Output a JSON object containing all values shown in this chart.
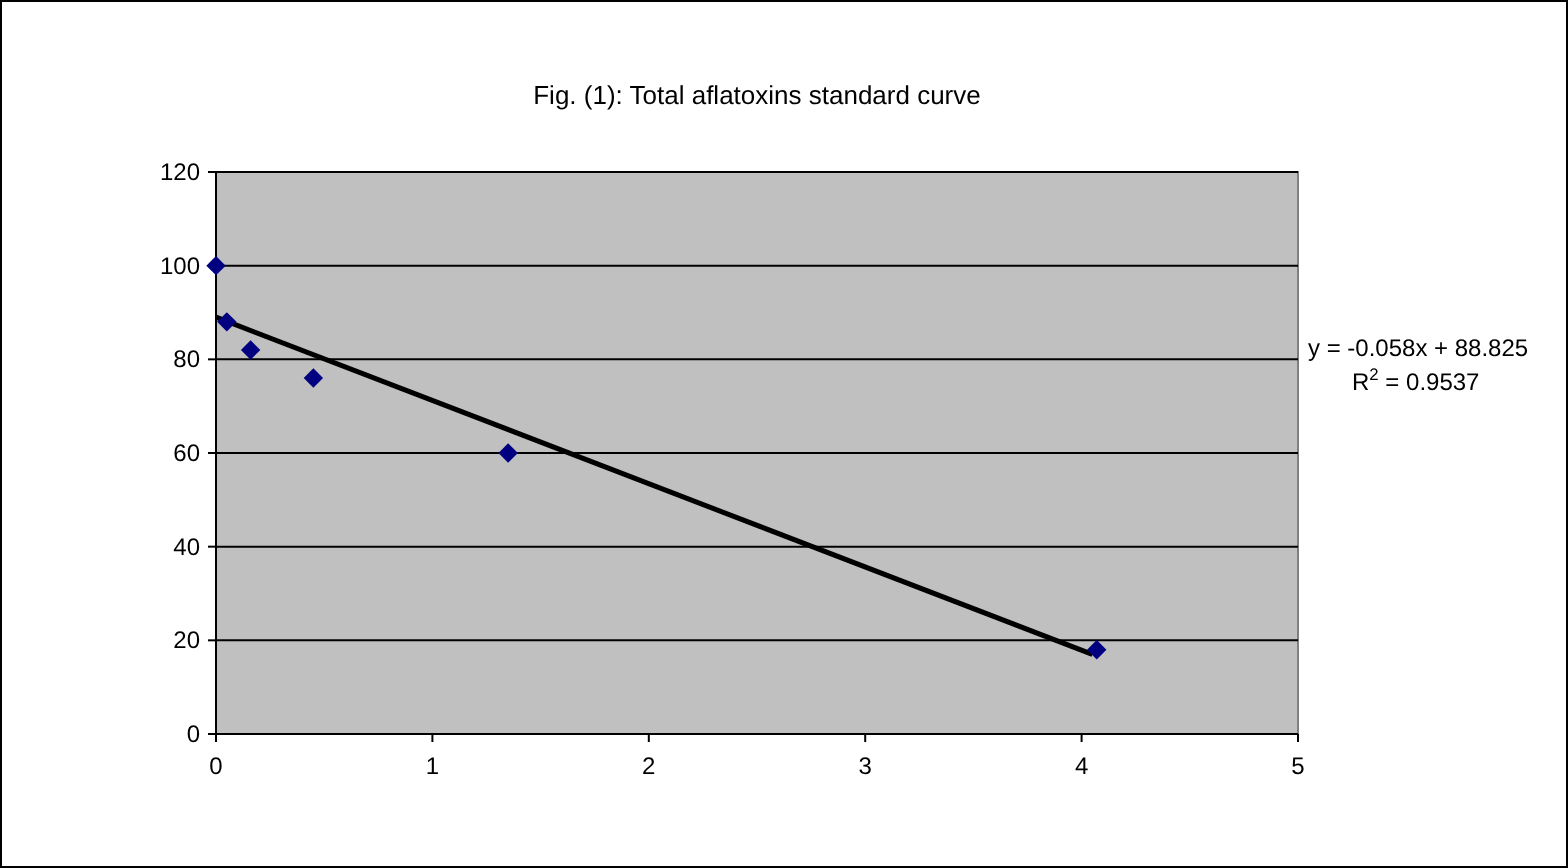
{
  "chart_data": {
    "type": "scatter",
    "title": "Fig. (1): Total aflatoxins standard curve",
    "xlim": [
      0,
      5
    ],
    "xticks": [
      0,
      1,
      2,
      3,
      4,
      5
    ],
    "ylim": [
      0,
      120
    ],
    "yticks": [
      0,
      20,
      40,
      60,
      80,
      100,
      120
    ],
    "grid": "y",
    "series": [
      {
        "marker": "diamond",
        "color": "#000080",
        "x": [
          0,
          0.05,
          0.16,
          0.45,
          1.35,
          4.07
        ],
        "values": [
          100,
          88,
          82,
          76,
          60,
          18
        ]
      },
      {
        "type": "line",
        "color": "#000000",
        "x": [
          0,
          4.05
        ],
        "values": [
          89,
          17
        ]
      }
    ],
    "annotations": [
      "y = -0.058x + 88.825",
      "R$^{2}$ = 0.9537"
    ]
  }
}
